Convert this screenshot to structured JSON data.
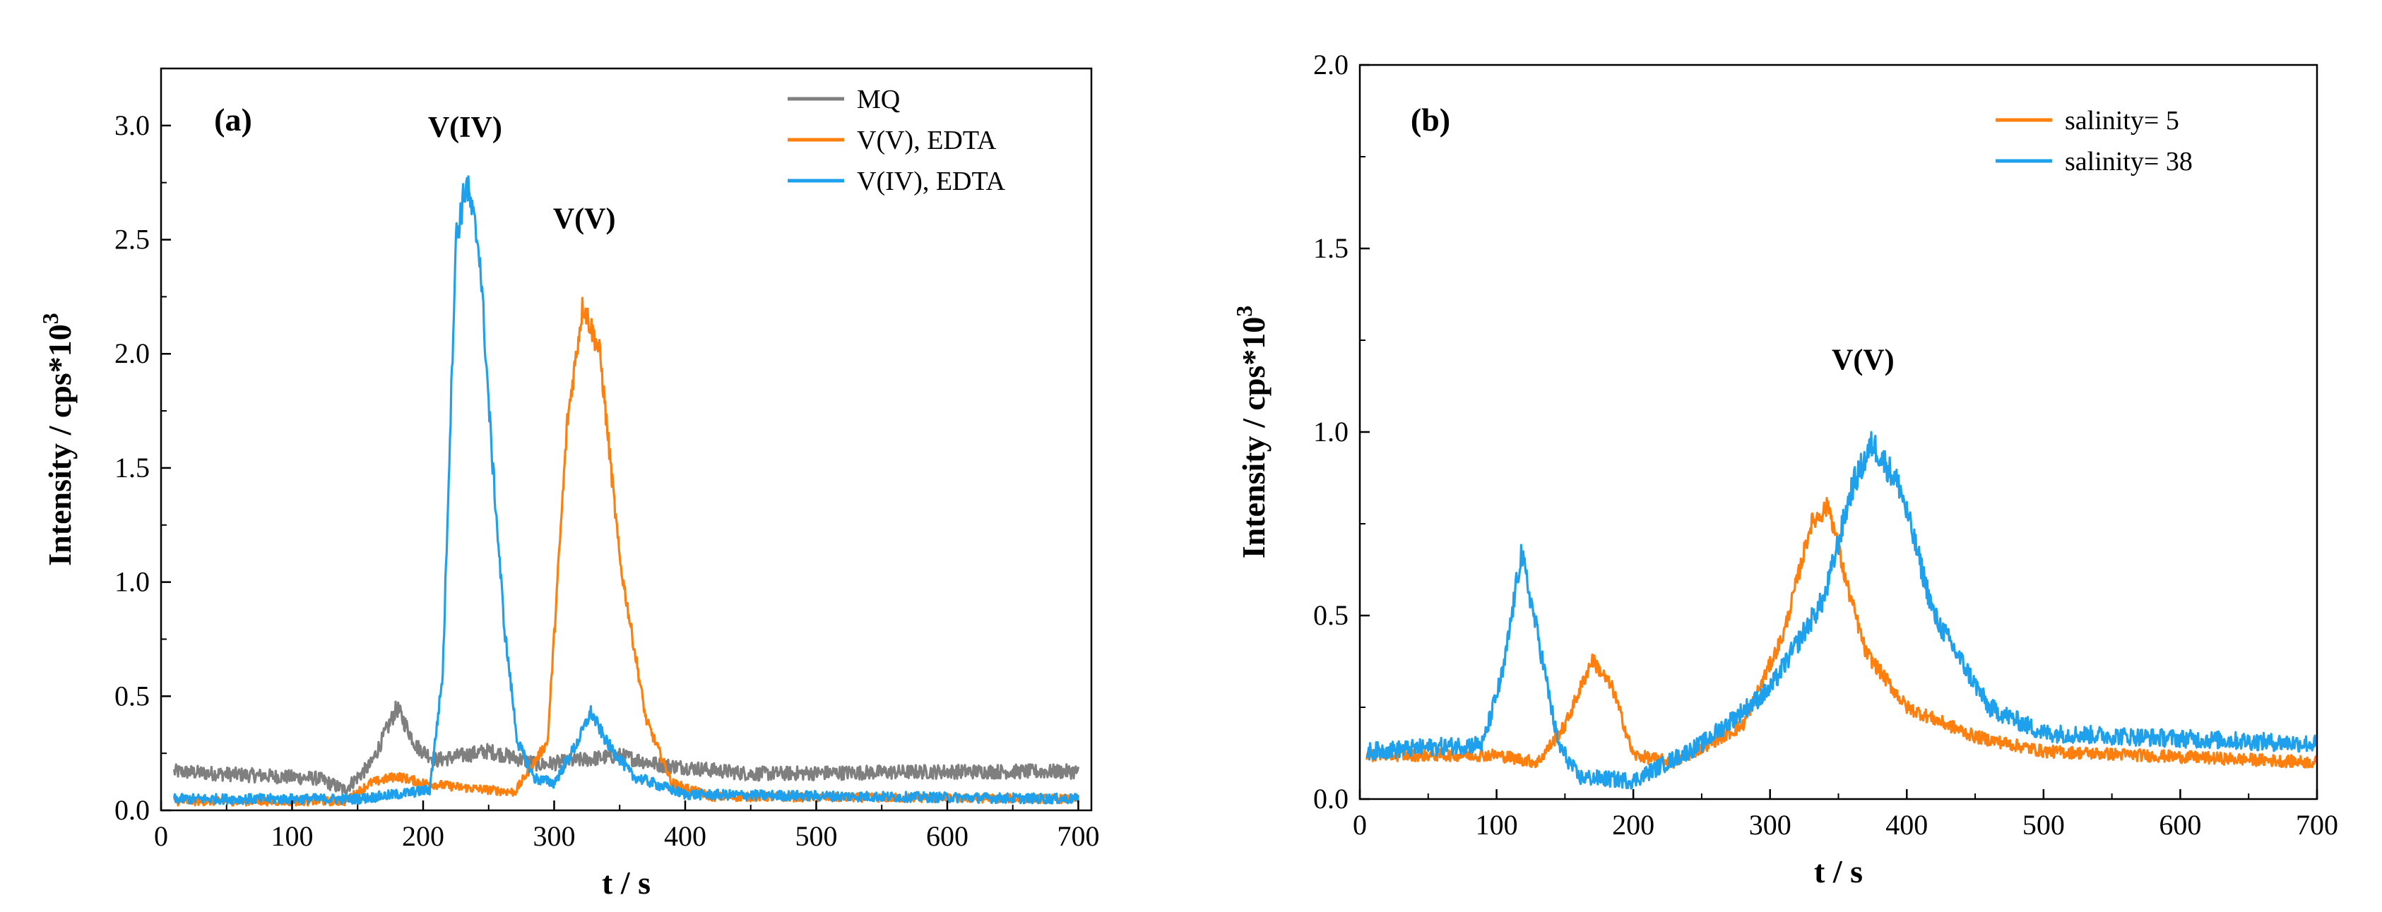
{
  "chart_data": [
    {
      "type": "line",
      "panel_label": "(a)",
      "xlabel": "t / s",
      "ylabel": "Intensity / cps*10",
      "ylabel_sup": "3",
      "xlim": [
        0,
        710
      ],
      "ylim": [
        0,
        3.25
      ],
      "xticks": [
        0,
        100,
        200,
        300,
        400,
        500,
        600,
        700
      ],
      "xtick_labels": [
        "0",
        "100",
        "200",
        "300",
        "400",
        "500",
        "600",
        "700"
      ],
      "yticks": [
        0,
        0.5,
        1.0,
        1.5,
        2.0,
        2.5,
        3.0
      ],
      "ytick_labels": [
        "0.0",
        "0.5",
        "1.0",
        "1.5",
        "2.0",
        "2.5",
        "3.0"
      ],
      "legend_position": "top-right",
      "annotations": [
        {
          "text": "V(IV)",
          "x": 232,
          "y": 2.95
        },
        {
          "text": "V(V)",
          "x": 323,
          "y": 2.55
        }
      ],
      "series": [
        {
          "name": "MQ",
          "color": "#7f7f7f",
          "noise": 0.045,
          "points": [
            [
              10,
              0.17
            ],
            [
              120,
              0.14
            ],
            [
              140,
              0.09
            ],
            [
              160,
              0.2
            ],
            [
              180,
              0.45
            ],
            [
              195,
              0.28
            ],
            [
              210,
              0.22
            ],
            [
              250,
              0.26
            ],
            [
              290,
              0.2
            ],
            [
              320,
              0.22
            ],
            [
              350,
              0.24
            ],
            [
              380,
              0.2
            ],
            [
              450,
              0.16
            ],
            [
              600,
              0.17
            ],
            [
              700,
              0.17
            ]
          ]
        },
        {
          "name": "V(V), EDTA",
          "color": "#ff7f0e",
          "noise": 0.03,
          "points": [
            [
              10,
              0.04
            ],
            [
              140,
              0.04
            ],
            [
              160,
              0.12
            ],
            [
              180,
              0.15
            ],
            [
              200,
              0.12
            ],
            [
              230,
              0.1
            ],
            [
              270,
              0.08
            ],
            [
              295,
              0.3
            ],
            [
              310,
              1.7
            ],
            [
              322,
              2.22
            ],
            [
              335,
              2.0
            ],
            [
              350,
              1.1
            ],
            [
              370,
              0.4
            ],
            [
              390,
              0.12
            ],
            [
              420,
              0.06
            ],
            [
              700,
              0.05
            ]
          ]
        },
        {
          "name": "V(IV), EDTA",
          "color": "#1ea0ec",
          "noise": 0.035,
          "points": [
            [
              10,
              0.05
            ],
            [
              150,
              0.05
            ],
            [
              180,
              0.07
            ],
            [
              205,
              0.09
            ],
            [
              215,
              0.6
            ],
            [
              225,
              2.5
            ],
            [
              233,
              2.75
            ],
            [
              243,
              2.45
            ],
            [
              252,
              1.6
            ],
            [
              262,
              0.8
            ],
            [
              272,
              0.3
            ],
            [
              285,
              0.14
            ],
            [
              300,
              0.12
            ],
            [
              318,
              0.3
            ],
            [
              328,
              0.43
            ],
            [
              340,
              0.3
            ],
            [
              360,
              0.15
            ],
            [
              400,
              0.07
            ],
            [
              700,
              0.05
            ]
          ]
        }
      ]
    },
    {
      "type": "line",
      "panel_label": "(b)",
      "xlabel": "t / s",
      "ylabel": "Intensity / cps*10",
      "ylabel_sup": "3",
      "xlim": [
        0,
        700
      ],
      "ylim": [
        0,
        2.0
      ],
      "xticks": [
        0,
        100,
        200,
        300,
        400,
        500,
        600,
        700
      ],
      "xtick_labels": [
        "0",
        "100",
        "200",
        "300",
        "400",
        "500",
        "600",
        "700"
      ],
      "yticks": [
        0,
        0.5,
        1.0,
        1.5,
        2.0
      ],
      "ytick_labels": [
        "0.0",
        "0.5",
        "1.0",
        "1.5",
        "2.0"
      ],
      "legend_position": "top-right",
      "annotations": [
        {
          "text": "V(V)",
          "x": 368,
          "y": 1.17
        }
      ],
      "series": [
        {
          "name": "salinity= 5",
          "color": "#ff7f0e",
          "noise": 0.025,
          "points": [
            [
              5,
              0.12
            ],
            [
              100,
              0.12
            ],
            [
              130,
              0.1
            ],
            [
              150,
              0.2
            ],
            [
              170,
              0.38
            ],
            [
              185,
              0.3
            ],
            [
              200,
              0.12
            ],
            [
              230,
              0.1
            ],
            [
              280,
              0.2
            ],
            [
              310,
              0.45
            ],
            [
              330,
              0.75
            ],
            [
              343,
              0.8
            ],
            [
              355,
              0.6
            ],
            [
              370,
              0.4
            ],
            [
              400,
              0.25
            ],
            [
              450,
              0.17
            ],
            [
              500,
              0.13
            ],
            [
              700,
              0.1
            ]
          ]
        },
        {
          "name": "salinity= 38",
          "color": "#1ea0ec",
          "noise": 0.035,
          "points": [
            [
              5,
              0.13
            ],
            [
              90,
              0.15
            ],
            [
              105,
              0.35
            ],
            [
              118,
              0.67
            ],
            [
              130,
              0.45
            ],
            [
              145,
              0.15
            ],
            [
              160,
              0.06
            ],
            [
              200,
              0.05
            ],
            [
              250,
              0.15
            ],
            [
              300,
              0.3
            ],
            [
              340,
              0.55
            ],
            [
              360,
              0.85
            ],
            [
              375,
              0.97
            ],
            [
              395,
              0.85
            ],
            [
              420,
              0.5
            ],
            [
              460,
              0.25
            ],
            [
              500,
              0.18
            ],
            [
              700,
              0.15
            ]
          ]
        }
      ]
    }
  ]
}
